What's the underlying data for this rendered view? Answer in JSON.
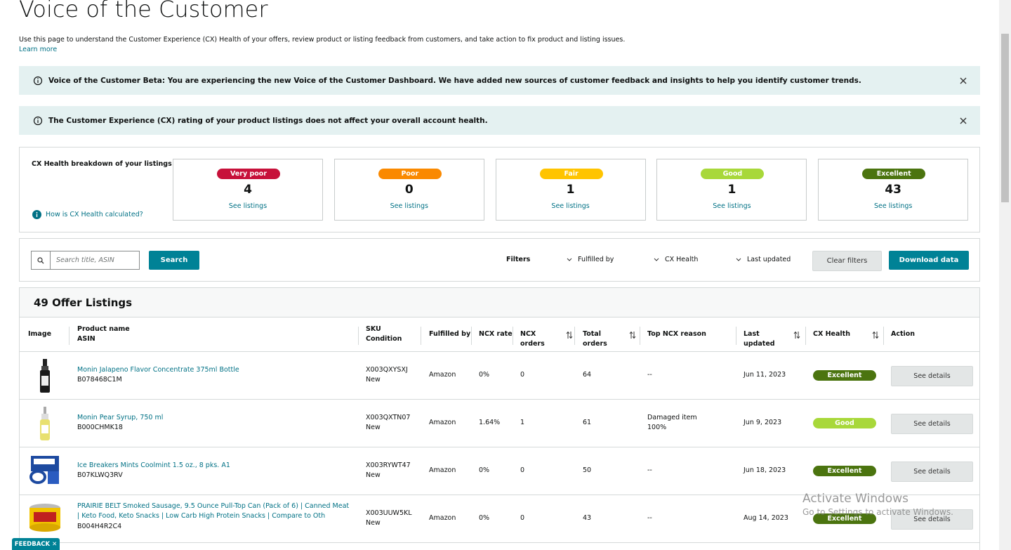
{
  "header": {
    "title": "Voice of the Customer",
    "description": "Use this page to understand the Customer Experience (CX) Health of your offers, review product or listing feedback from customers, and take action to fix product and listing issues.",
    "learn_more": "Learn more"
  },
  "banners": [
    "Voice of the Customer Beta: You are experiencing the new Voice of the Customer Dashboard. We have added new sources of customer feedback and insights to help you identify customer trends.",
    "The Customer Experience (CX) rating of your product listings does not affect your overall account health."
  ],
  "breakdown": {
    "label": "CX Health breakdown of your listings",
    "help": "How is CX Health calculated?",
    "cards": [
      {
        "badge": "Very poor",
        "color": "#c7113a",
        "text_color": "#ffffff",
        "count": 4,
        "link": "See listings"
      },
      {
        "badge": "Poor",
        "color": "#fa8900",
        "text_color": "#ffffff",
        "count": 0,
        "link": "See listings"
      },
      {
        "badge": "Fair",
        "color": "#ffc400",
        "text_color": "#ffffff",
        "count": 1,
        "link": "See listings"
      },
      {
        "badge": "Good",
        "color": "#a8d83a",
        "text_color": "#ffffff",
        "count": 1,
        "link": "See listings"
      },
      {
        "badge": "Excellent",
        "color": "#4b740f",
        "text_color": "#ffffff",
        "count": 43,
        "link": "See listings"
      }
    ]
  },
  "search": {
    "placeholder": "Search title, ASIN",
    "button": "Search"
  },
  "filters": {
    "label": "Filters",
    "options": [
      "Fulfilled by",
      "CX Health",
      "Last updated"
    ],
    "clear": "Clear filters",
    "download": "Download data"
  },
  "table": {
    "title": "49 Offer Listings",
    "columns": [
      [
        "Image"
      ],
      [
        "Product name",
        "ASIN"
      ],
      [
        "SKU",
        "Condition"
      ],
      [
        "Fulfilled by"
      ],
      [
        "NCX rate"
      ],
      [
        "NCX orders"
      ],
      [
        "Total orders"
      ],
      [
        "Top NCX reason"
      ],
      [
        "Last updated"
      ],
      [
        "CX Health"
      ],
      [
        "Action"
      ]
    ],
    "rows": [
      {
        "name": "Monin Jalapeno Flavor Concentrate 375ml Bottle",
        "asin": "B078468C1M",
        "sku": "X003QXYSXJ",
        "condition": "New",
        "fulfilled": "Amazon",
        "ncx_rate": "0%",
        "ncx_orders": 0,
        "total_orders": 64,
        "reason": [
          "--"
        ],
        "updated": "Jun 11, 2023",
        "health": "Excellent",
        "action": "See details"
      },
      {
        "name": "Monin Pear Syrup, 750 ml",
        "asin": "B000CHMK18",
        "sku": "X003QXTN07",
        "condition": "New",
        "fulfilled": "Amazon",
        "ncx_rate": "1.64%",
        "ncx_orders": 1,
        "total_orders": 61,
        "reason": [
          "Damaged item",
          "100%"
        ],
        "updated": "Jun 9, 2023",
        "health": "Good",
        "action": "See details"
      },
      {
        "name": "Ice Breakers Mints Coolmint 1.5 oz., 8 pks. A1",
        "asin": "B07KLWQ3RV",
        "sku": "X003RYWT47",
        "condition": "New",
        "fulfilled": "Amazon",
        "ncx_rate": "0%",
        "ncx_orders": 0,
        "total_orders": 50,
        "reason": [
          "--"
        ],
        "updated": "Jun 18, 2023",
        "health": "Excellent",
        "action": "See details"
      },
      {
        "name": "PRAIRIE BELT Smoked Sausage, 9.5 Ounce Pull-Top Can (Pack of 6) | Canned Meat | Keto Food, Keto Snacks | Low Carb High Protein Snacks | Compare to Oth",
        "asin": "B004H4R2C4",
        "sku": "X003UUW5KL",
        "condition": "New",
        "fulfilled": "Amazon",
        "ncx_rate": "0%",
        "ncx_orders": 0,
        "total_orders": 43,
        "reason": [
          "--"
        ],
        "updated": "Aug 14, 2023",
        "health": "Excellent",
        "action": "See details"
      }
    ]
  },
  "feedback": "FEEDBACK",
  "watermark": {
    "title": "Activate Windows",
    "text": "Go to Settings to activate Windows."
  }
}
